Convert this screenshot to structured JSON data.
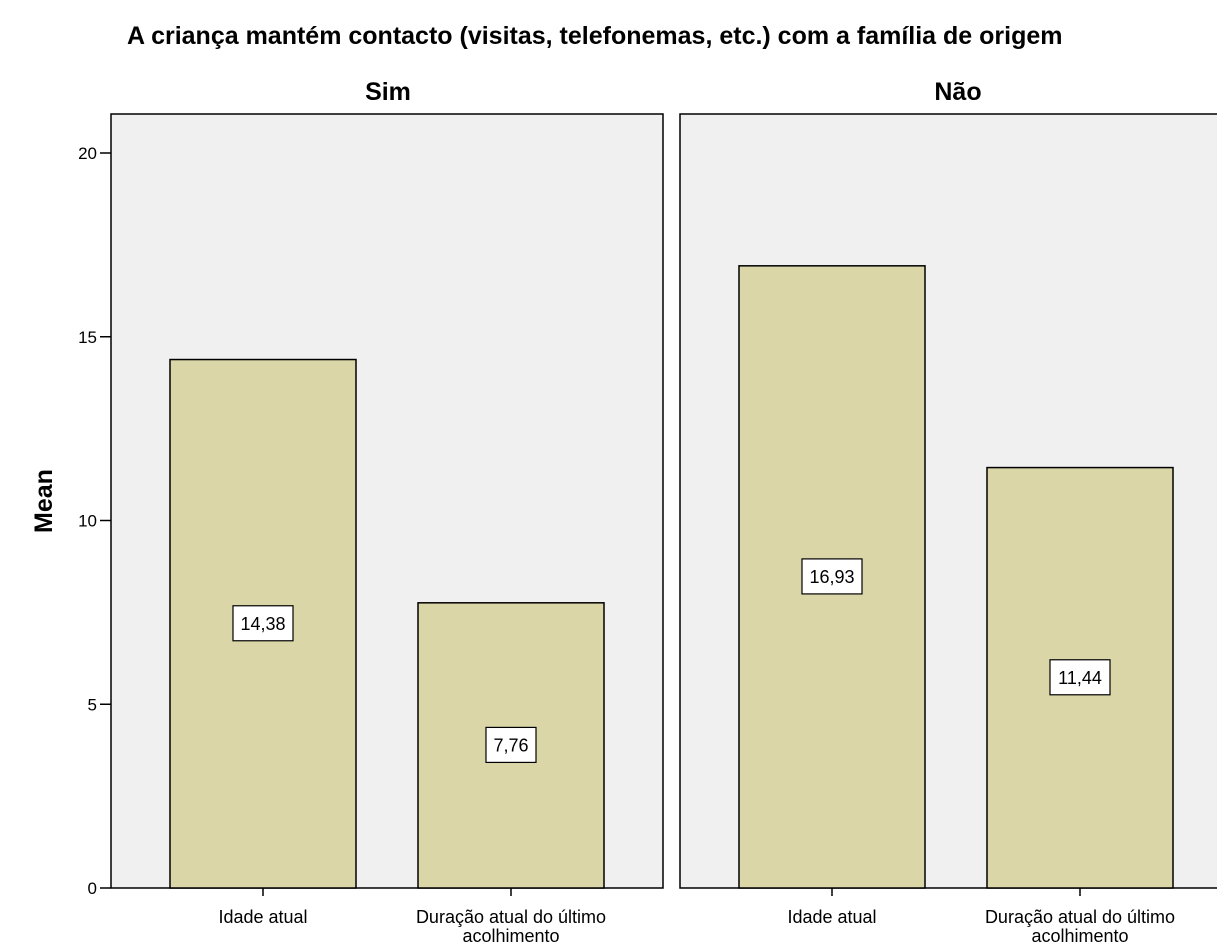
{
  "chart_data": {
    "type": "bar",
    "title": "A criança mantém contacto (visitas, telefonemas, etc.) com a família de origem",
    "ylabel": "Mean",
    "xlabel": "",
    "ylim": [
      0,
      21
    ],
    "yticks": [
      0,
      5,
      10,
      15,
      20
    ],
    "ytick_labels": [
      "0",
      "5",
      "10",
      "15",
      "20"
    ],
    "grid": false,
    "bar_color": "#dad6a8",
    "panel_background": "#f0f0f0",
    "categories": [
      [
        "Idade atual"
      ],
      [
        "Duração atual do último",
        "acolhimento"
      ]
    ],
    "panels": [
      {
        "name": "Sim",
        "values": [
          14.38,
          7.76
        ],
        "labels": [
          "14,38",
          "7,76"
        ]
      },
      {
        "name": "Não",
        "values": [
          16.93,
          11.44
        ],
        "labels": [
          "16,93",
          "11,44"
        ]
      }
    ]
  }
}
